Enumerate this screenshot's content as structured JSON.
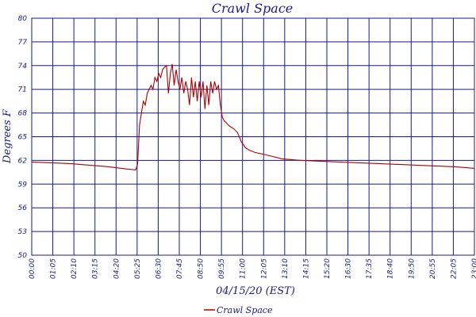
{
  "chart_data": {
    "type": "line",
    "title": "Crawl Space",
    "xlabel": "04/15/20 (EST)",
    "ylabel": "Degrees F",
    "ylim": [
      50,
      80
    ],
    "y_ticks": [
      "50",
      "53",
      "56",
      "59",
      "62",
      "65",
      "68",
      "71",
      "74",
      "77",
      "80"
    ],
    "x_ticks": [
      "00:00",
      "01:05",
      "02:10",
      "03:15",
      "04:20",
      "05:25",
      "06:30",
      "07:45",
      "08:50",
      "09:55",
      "11:00",
      "12:05",
      "13:10",
      "14:15",
      "15:20",
      "16:30",
      "17:35",
      "18:40",
      "19:50",
      "20:55",
      "22:05",
      "23:00"
    ],
    "grid": true,
    "legend_position": "bottom",
    "colors": {
      "series": "#b00000",
      "axis": "#1a1a8c"
    },
    "series": [
      {
        "name": "Crawl Space",
        "x_hours": [
          0,
          1,
          2,
          3,
          4,
          5.0,
          5.4,
          5.5,
          5.6,
          5.7,
          5.8,
          5.9,
          6.0,
          6.1,
          6.2,
          6.3,
          6.4,
          6.5,
          6.6,
          6.7,
          6.8,
          6.9,
          7.0,
          7.1,
          7.2,
          7.3,
          7.4,
          7.5,
          7.6,
          7.7,
          7.8,
          7.9,
          8.0,
          8.1,
          8.2,
          8.3,
          8.4,
          8.5,
          8.6,
          8.7,
          8.8,
          8.9,
          9.0,
          9.1,
          9.2,
          9.3,
          9.4,
          9.5,
          9.6,
          9.7,
          9.8,
          9.9,
          10.0,
          10.1,
          10.2,
          10.3,
          10.5,
          10.7,
          10.9,
          11.0,
          11.1,
          11.3,
          11.6,
          12.0,
          12.5,
          13.0,
          14.0,
          15.0,
          16.0,
          17.0,
          18.0,
          19.0,
          20.0,
          21.0,
          22.0,
          23.0
        ],
        "values": [
          61.8,
          61.7,
          61.6,
          61.4,
          61.2,
          60.9,
          60.8,
          61.5,
          66.5,
          68.0,
          69.5,
          69.0,
          70.5,
          71.0,
          71.5,
          71.0,
          72.5,
          72.0,
          73.0,
          72.5,
          73.5,
          73.8,
          74.0,
          70.5,
          73.0,
          74.2,
          71.5,
          73.5,
          72.0,
          71.0,
          72.5,
          70.5,
          72.0,
          71.0,
          69.0,
          72.5,
          70.0,
          72.0,
          69.5,
          72.0,
          70.0,
          72.0,
          68.5,
          71.5,
          69.0,
          72.0,
          70.5,
          72.0,
          71.0,
          71.5,
          69.0,
          67.5,
          67.0,
          66.8,
          66.5,
          66.3,
          66.0,
          65.5,
          64.3,
          64.0,
          63.6,
          63.3,
          63.0,
          62.8,
          62.5,
          62.2,
          62.0,
          61.9,
          61.8,
          61.7,
          61.6,
          61.5,
          61.4,
          61.3,
          61.2,
          61.0
        ]
      }
    ]
  }
}
